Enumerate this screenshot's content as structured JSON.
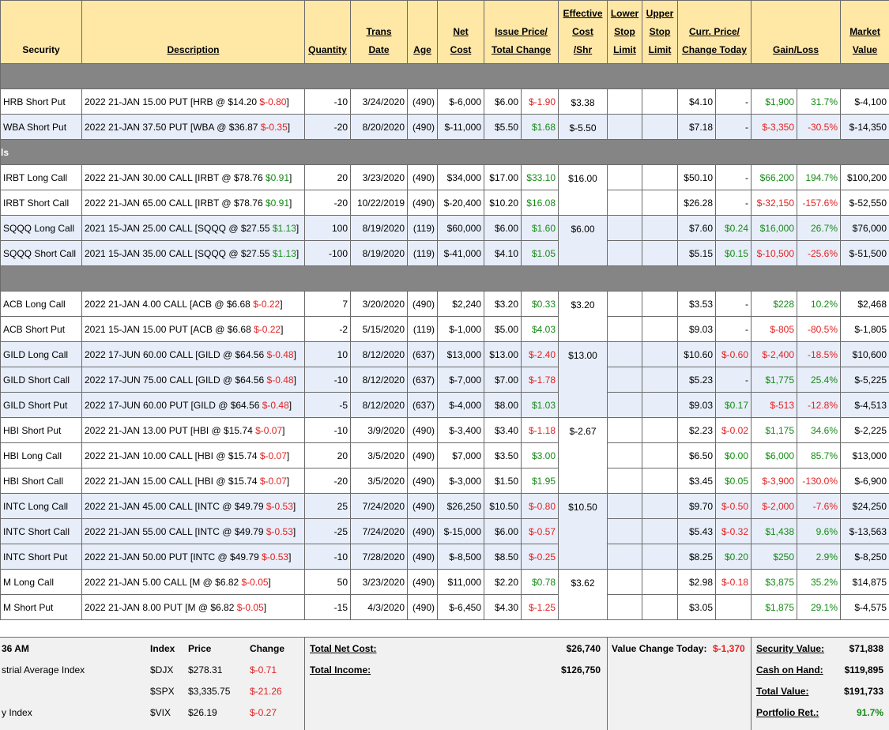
{
  "headers": [
    {
      "lines": [
        "Security"
      ],
      "underline": false
    },
    {
      "lines": [
        "Description"
      ]
    },
    {
      "lines": [
        "Quantity"
      ]
    },
    {
      "lines": [
        "Trans",
        "Date"
      ]
    },
    {
      "lines": [
        "Age"
      ]
    },
    {
      "lines": [
        "Net",
        "Cost"
      ]
    },
    {
      "lines": [
        "Issue Price/",
        "Total Change"
      ],
      "span": 2
    },
    {
      "lines": [
        "Effective",
        "Cost",
        "/Shr"
      ]
    },
    {
      "lines": [
        "Lower",
        "Stop",
        "Limit"
      ]
    },
    {
      "lines": [
        "Upper",
        "Stop",
        "Limit"
      ]
    },
    {
      "lines": [
        "Curr. Price/",
        "Change Today"
      ],
      "span": 2
    },
    {
      "lines": [
        "Gain/Loss"
      ],
      "span": 2
    },
    {
      "lines": [
        "Market",
        "Value"
      ]
    }
  ],
  "sections": [
    {
      "groups": [
        {
          "effective_cost": "$3.38",
          "rows": [
            {
              "security": "HRB Short Put",
              "description": [
                "2022 21-JAN 15.00 PUT [HRB @ $14.20 ",
                "$-0.80",
                "]"
              ],
              "quantity": "-10",
              "date": "3/24/2020",
              "age": "(490)",
              "net_cost": "$-6,000",
              "issue_price": "$6.00",
              "total_change": "$-1.90",
              "curr_price": "$4.10",
              "change_today": "-",
              "gain": "$1,900",
              "gain_pct": "31.7%",
              "market_value": "$-4,100"
            }
          ]
        },
        {
          "effective_cost": "$-5.50",
          "rows": [
            {
              "security": "WBA Short Put",
              "description": [
                "2022 21-JAN 37.50 PUT [WBA @ $36.87 ",
                "$-0.35",
                "]"
              ],
              "quantity": "-20",
              "date": "8/20/2020",
              "age": "(490)",
              "net_cost": "$-11,000",
              "issue_price": "$5.50",
              "total_change": "$1.68",
              "curr_price": "$7.18",
              "change_today": "-",
              "gain": "$-3,350",
              "gain_pct": "-30.5%",
              "market_value": "$-14,350"
            }
          ]
        }
      ]
    },
    {
      "label": "ls",
      "groups": [
        {
          "effective_cost": "$16.00",
          "rows": [
            {
              "security": "IRBT Long Call",
              "description": [
                "2022 21-JAN 30.00 CALL [IRBT @ $78.76 ",
                "$0.91",
                "]"
              ],
              "quantity": "20",
              "date": "3/23/2020",
              "age": "(490)",
              "net_cost": "$34,000",
              "issue_price": "$17.00",
              "total_change": "$33.10",
              "curr_price": "$50.10",
              "change_today": "-",
              "gain": "$66,200",
              "gain_pct": "194.7%",
              "market_value": "$100,200"
            },
            {
              "security": "IRBT Short Call",
              "description": [
                "2022 21-JAN 65.00 CALL [IRBT @ $78.76 ",
                "$0.91",
                "]"
              ],
              "quantity": "-20",
              "date": "10/22/2019",
              "age": "(490)",
              "net_cost": "$-20,400",
              "issue_price": "$10.20",
              "total_change": "$16.08",
              "curr_price": "$26.28",
              "change_today": "-",
              "gain": "$-32,150",
              "gain_pct": "-157.6%",
              "market_value": "$-52,550"
            }
          ]
        },
        {
          "effective_cost": "$6.00",
          "rows": [
            {
              "security": "SQQQ Long Call",
              "description": [
                "2021 15-JAN 25.00 CALL [SQQQ @ $27.55 ",
                "$1.13",
                "]"
              ],
              "quantity": "100",
              "date": "8/19/2020",
              "age": "(119)",
              "net_cost": "$60,000",
              "issue_price": "$6.00",
              "total_change": "$1.60",
              "curr_price": "$7.60",
              "change_today": "$0.24",
              "gain": "$16,000",
              "gain_pct": "26.7%",
              "market_value": "$76,000"
            },
            {
              "security": "SQQQ Short Call",
              "description": [
                "2021 15-JAN 35.00 CALL [SQQQ @ $27.55 ",
                "$1.13",
                "]"
              ],
              "quantity": "-100",
              "date": "8/19/2020",
              "age": "(119)",
              "net_cost": "$-41,000",
              "issue_price": "$4.10",
              "total_change": "$1.05",
              "curr_price": "$5.15",
              "change_today": "$0.15",
              "gain": "$-10,500",
              "gain_pct": "-25.6%",
              "market_value": "$-51,500"
            }
          ]
        }
      ]
    },
    {
      "groups": [
        {
          "effective_cost": "$3.20",
          "rows": [
            {
              "security": "ACB Long Call",
              "description": [
                "2022 21-JAN 4.00 CALL [ACB @ $6.68 ",
                "$-0.22",
                "]"
              ],
              "quantity": "7",
              "date": "3/20/2020",
              "age": "(490)",
              "net_cost": "$2,240",
              "issue_price": "$3.20",
              "total_change": "$0.33",
              "curr_price": "$3.53",
              "change_today": "-",
              "gain": "$228",
              "gain_pct": "10.2%",
              "market_value": "$2,468"
            },
            {
              "security": "ACB Short Put",
              "description": [
                "2021 15-JAN 15.00 PUT [ACB @ $6.68 ",
                "$-0.22",
                "]"
              ],
              "quantity": "-2",
              "date": "5/15/2020",
              "age": "(119)",
              "net_cost": "$-1,000",
              "issue_price": "$5.00",
              "total_change": "$4.03",
              "curr_price": "$9.03",
              "change_today": "-",
              "gain": "$-805",
              "gain_pct": "-80.5%",
              "market_value": "$-1,805"
            }
          ]
        },
        {
          "effective_cost": "$13.00",
          "rows": [
            {
              "security": "GILD Long Call",
              "description": [
                "2022 17-JUN 60.00 CALL [GILD @ $64.56 ",
                "$-0.48",
                "]"
              ],
              "quantity": "10",
              "date": "8/12/2020",
              "age": "(637)",
              "net_cost": "$13,000",
              "issue_price": "$13.00",
              "total_change": "$-2.40",
              "curr_price": "$10.60",
              "change_today": "$-0.60",
              "gain": "$-2,400",
              "gain_pct": "-18.5%",
              "market_value": "$10,600"
            },
            {
              "security": "GILD Short Call",
              "description": [
                "2022 17-JUN 75.00 CALL [GILD @ $64.56 ",
                "$-0.48",
                "]"
              ],
              "quantity": "-10",
              "date": "8/12/2020",
              "age": "(637)",
              "net_cost": "$-7,000",
              "issue_price": "$7.00",
              "total_change": "$-1.78",
              "curr_price": "$5.23",
              "change_today": "-",
              "gain": "$1,775",
              "gain_pct": "25.4%",
              "market_value": "$-5,225"
            },
            {
              "security": "GILD Short Put",
              "description": [
                "2022 17-JUN 60.00 PUT [GILD @ $64.56 ",
                "$-0.48",
                "]"
              ],
              "quantity": "-5",
              "date": "8/12/2020",
              "age": "(637)",
              "net_cost": "$-4,000",
              "issue_price": "$8.00",
              "total_change": "$1.03",
              "curr_price": "$9.03",
              "change_today": "$0.17",
              "gain": "$-513",
              "gain_pct": "-12.8%",
              "market_value": "$-4,513"
            }
          ]
        },
        {
          "effective_cost": "$-2.67",
          "rows": [
            {
              "security": "HBI Short Put",
              "description": [
                "2022 21-JAN 13.00 PUT [HBI @ $15.74 ",
                "$-0.07",
                "]"
              ],
              "quantity": "-10",
              "date": "3/9/2020",
              "age": "(490)",
              "net_cost": "$-3,400",
              "issue_price": "$3.40",
              "total_change": "$-1.18",
              "curr_price": "$2.23",
              "change_today": "$-0.02",
              "gain": "$1,175",
              "gain_pct": "34.6%",
              "market_value": "$-2,225"
            },
            {
              "security": "HBI Long Call",
              "description": [
                "2022 21-JAN 10.00 CALL [HBI @ $15.74 ",
                "$-0.07",
                "]"
              ],
              "quantity": "20",
              "date": "3/5/2020",
              "age": "(490)",
              "net_cost": "$7,000",
              "issue_price": "$3.50",
              "total_change": "$3.00",
              "curr_price": "$6.50",
              "change_today": "$0.00",
              "gain": "$6,000",
              "gain_pct": "85.7%",
              "market_value": "$13,000"
            },
            {
              "security": "HBI Short Call",
              "description": [
                "2022 21-JAN 15.00 CALL [HBI @ $15.74 ",
                "$-0.07",
                "]"
              ],
              "quantity": "-20",
              "date": "3/5/2020",
              "age": "(490)",
              "net_cost": "$-3,000",
              "issue_price": "$1.50",
              "total_change": "$1.95",
              "curr_price": "$3.45",
              "change_today": "$0.05",
              "gain": "$-3,900",
              "gain_pct": "-130.0%",
              "market_value": "$-6,900"
            }
          ]
        },
        {
          "effective_cost": "$10.50",
          "rows": [
            {
              "security": "INTC Long Call",
              "description": [
                "2022 21-JAN 45.00 CALL [INTC @ $49.79 ",
                "$-0.53",
                "]"
              ],
              "quantity": "25",
              "date": "7/24/2020",
              "age": "(490)",
              "net_cost": "$26,250",
              "issue_price": "$10.50",
              "total_change": "$-0.80",
              "curr_price": "$9.70",
              "change_today": "$-0.50",
              "gain": "$-2,000",
              "gain_pct": "-7.6%",
              "market_value": "$24,250"
            },
            {
              "security": "INTC Short Call",
              "description": [
                "2022 21-JAN 55.00 CALL [INTC @ $49.79 ",
                "$-0.53",
                "]"
              ],
              "quantity": "-25",
              "date": "7/24/2020",
              "age": "(490)",
              "net_cost": "$-15,000",
              "issue_price": "$6.00",
              "total_change": "$-0.57",
              "curr_price": "$5.43",
              "change_today": "$-0.32",
              "gain": "$1,438",
              "gain_pct": "9.6%",
              "market_value": "$-13,563"
            },
            {
              "security": "INTC Short Put",
              "description": [
                "2022 21-JAN 50.00 PUT [INTC @ $49.79 ",
                "$-0.53",
                "]"
              ],
              "quantity": "-10",
              "date": "7/28/2020",
              "age": "(490)",
              "net_cost": "$-8,500",
              "issue_price": "$8.50",
              "total_change": "$-0.25",
              "curr_price": "$8.25",
              "change_today": "$0.20",
              "gain": "$250",
              "gain_pct": "2.9%",
              "market_value": "$-8,250"
            }
          ]
        },
        {
          "effective_cost": "$3.62",
          "rows": [
            {
              "security": "M Long Call",
              "description": [
                "2022 21-JAN 5.00 CALL [M @ $6.82 ",
                "$-0.05",
                "]"
              ],
              "quantity": "50",
              "date": "3/23/2020",
              "age": "(490)",
              "net_cost": "$11,000",
              "issue_price": "$2.20",
              "total_change": "$0.78",
              "curr_price": "$2.98",
              "change_today": "$-0.18",
              "gain": "$3,875",
              "gain_pct": "35.2%",
              "market_value": "$14,875"
            },
            {
              "security": "M Short Put",
              "description": [
                "2022 21-JAN 8.00 PUT [M @ $6.82 ",
                "$-0.05",
                "]"
              ],
              "quantity": "-15",
              "date": "4/3/2020",
              "age": "(490)",
              "net_cost": "$-6,450",
              "issue_price": "$4.30",
              "total_change": "$-1.25",
              "curr_price": "$3.05",
              "change_today": null,
              "gain": "$1,875",
              "gain_pct": "29.1%",
              "market_value": "$-4,575"
            }
          ]
        }
      ]
    }
  ],
  "footer": {
    "market": {
      "header": [
        "36 AM",
        "Index",
        "Price",
        "Change"
      ],
      "rows": [
        [
          "strial Average Index",
          "$DJX",
          "$278.31",
          "$-0.71"
        ],
        [
          null,
          "$SPX",
          "$3,335.75",
          "$-21.26"
        ],
        [
          "y Index",
          "$VIX",
          "$26.19",
          "$-0.27"
        ]
      ]
    },
    "totals": [
      {
        "label": "Total Net Cost:",
        "value": "$26,740"
      },
      {
        "label": "Total Income:",
        "value": "$126,750"
      }
    ],
    "value_change": {
      "label": "Value Change Today:",
      "value": "$-1,370"
    },
    "summary": [
      {
        "label": "Security Value:",
        "value": "$71,838"
      },
      {
        "label": "Cash on Hand:",
        "value": "$119,895"
      },
      {
        "label": "Total Value:",
        "value": "$191,733"
      },
      {
        "label": "Portfolio Ret.:",
        "value": "91.7%"
      }
    ]
  }
}
